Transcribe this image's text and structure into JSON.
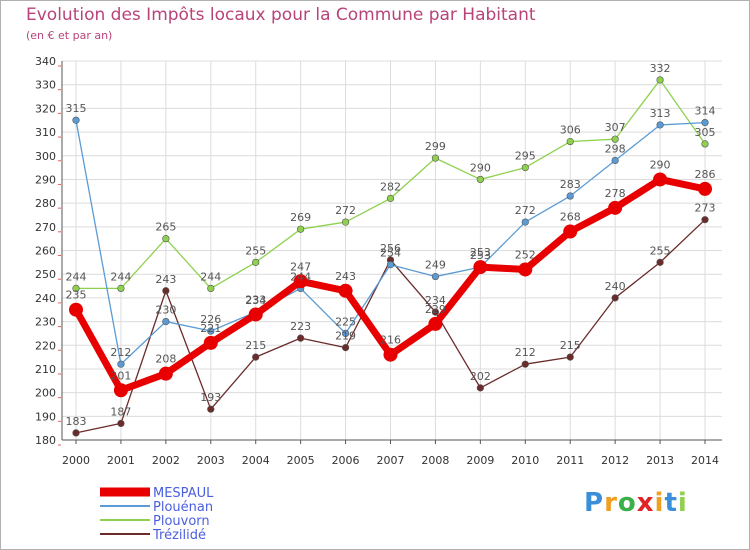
{
  "chart_data": {
    "type": "line",
    "title": "Evolution des Impôts locaux pour la Commune par Habitant",
    "subtitle": "(en € et par an)",
    "x": [
      "2000",
      "2001",
      "2002",
      "2003",
      "2004",
      "2005",
      "2006",
      "2007",
      "2008",
      "2009",
      "2010",
      "2011",
      "2012",
      "2013",
      "2014"
    ],
    "ylim": [
      180,
      340
    ],
    "yticks": [
      180,
      190,
      200,
      210,
      220,
      230,
      240,
      250,
      260,
      270,
      280,
      290,
      300,
      310,
      320,
      330,
      340
    ],
    "grid": true,
    "legend_position": "bottom-left",
    "series": [
      {
        "name": "MESPAUL",
        "color": "#e80000",
        "values": [
          235,
          201,
          208,
          221,
          233,
          247,
          243,
          216,
          229,
          253,
          252,
          268,
          278,
          290,
          286
        ]
      },
      {
        "name": "Plouénan",
        "color": "#5b9bd5",
        "values": [
          315,
          212,
          230,
          226,
          234,
          244,
          225,
          254,
          249,
          253,
          272,
          283,
          298,
          313,
          314
        ]
      },
      {
        "name": "Plouvorn",
        "color": "#8fd14f",
        "values": [
          244,
          244,
          265,
          244,
          255,
          269,
          272,
          282,
          299,
          290,
          295,
          306,
          307,
          332,
          305
        ]
      },
      {
        "name": "Trézilidé",
        "color": "#6b2b2b",
        "values": [
          183,
          187,
          243,
          193,
          215,
          223,
          219,
          256,
          234,
          202,
          212,
          215,
          240,
          255,
          273
        ]
      }
    ]
  },
  "brand": {
    "letters": [
      "P",
      "r",
      "o",
      "x",
      "i",
      "t",
      "i"
    ],
    "colors": [
      "#3a8fd8",
      "#f0a020",
      "#3ab04a",
      "#e02424",
      "#f0a020",
      "#3a8fd8",
      "#8fd14f"
    ]
  }
}
